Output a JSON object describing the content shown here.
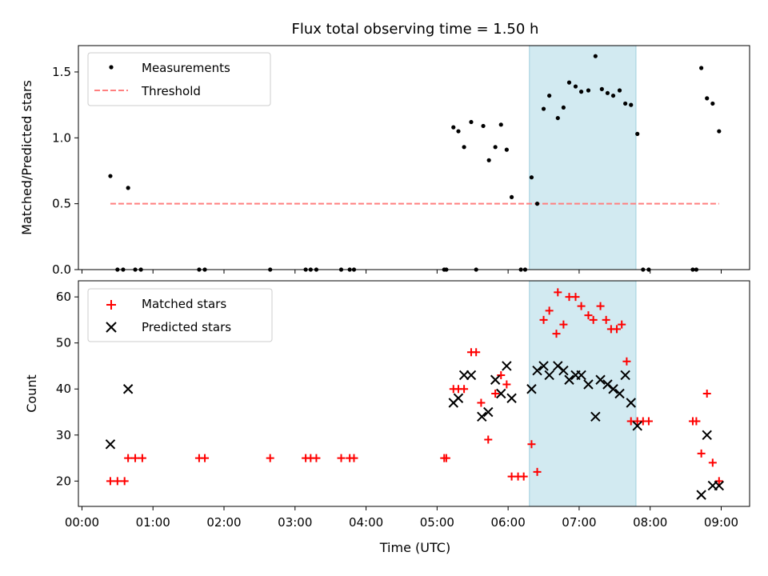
{
  "title": "Flux total observing time = 1.50 h",
  "colors": {
    "measurement": "#000000",
    "threshold": "#ff7f7f",
    "matched": "#ff0000",
    "predicted": "#000000",
    "highlight": "#add8e6"
  },
  "chart_data": [
    {
      "type": "scatter",
      "ylabel": "Matched/Predicted stars",
      "ylim": [
        0,
        1.7
      ],
      "yticks": [
        "0.0",
        "0.5",
        "1.0",
        "1.5"
      ],
      "ytick_values": [
        0,
        0.5,
        1.0,
        1.5
      ],
      "xlim": [
        -0.05,
        9.4
      ],
      "highlight_span": [
        6.3,
        7.8
      ],
      "legend_position": "upper-left",
      "series": [
        {
          "name": "Measurements",
          "marker": "dot",
          "x": [
            0.4,
            0.5,
            0.58,
            0.65,
            0.75,
            0.83,
            1.65,
            1.73,
            2.65,
            3.15,
            3.22,
            3.3,
            3.65,
            3.77,
            3.83,
            5.1,
            5.13,
            5.23,
            5.3,
            5.38,
            5.48,
            5.55,
            5.65,
            5.73,
            5.82,
            5.9,
            5.98,
            6.05,
            6.18,
            6.24,
            6.33,
            6.41,
            6.5,
            6.58,
            6.7,
            6.78,
            6.86,
            6.95,
            7.03,
            7.13,
            7.23,
            7.32,
            7.4,
            7.48,
            7.57,
            7.65,
            7.73,
            7.82,
            7.9,
            7.98,
            8.6,
            8.65,
            8.72,
            8.8,
            8.88,
            8.97
          ],
          "y": [
            0.71,
            0.0,
            0.0,
            0.62,
            0.0,
            0.0,
            0.0,
            0.0,
            0.0,
            0.0,
            0.0,
            0.0,
            0.0,
            0.0,
            0.0,
            0.0,
            0.0,
            1.08,
            1.05,
            0.93,
            1.12,
            0.0,
            1.09,
            0.83,
            0.93,
            1.1,
            0.91,
            0.55,
            0.0,
            0.0,
            0.7,
            0.5,
            1.22,
            1.32,
            1.15,
            1.23,
            1.42,
            1.39,
            1.35,
            1.36,
            1.62,
            1.37,
            1.34,
            1.32,
            1.36,
            1.26,
            1.25,
            1.03,
            0.0,
            0.0,
            0.0,
            0.0,
            1.53,
            1.3,
            1.26,
            1.05
          ]
        },
        {
          "name": "Threshold",
          "marker": "dashed-line",
          "x": [
            0.4,
            8.97
          ],
          "y": [
            0.5,
            0.5
          ]
        }
      ]
    },
    {
      "type": "scatter",
      "ylabel": "Count",
      "xlabel": "Time (UTC)",
      "ylim": [
        14.5,
        63.5
      ],
      "yticks": [
        "20",
        "30",
        "40",
        "50",
        "60"
      ],
      "ytick_values": [
        20,
        30,
        40,
        50,
        60
      ],
      "xlim": [
        -0.05,
        9.4
      ],
      "xticks": [
        "00:00",
        "01:00",
        "02:00",
        "03:00",
        "04:00",
        "05:00",
        "06:00",
        "07:00",
        "08:00",
        "09:00"
      ],
      "xtick_values": [
        0,
        1,
        2,
        3,
        4,
        5,
        6,
        7,
        8,
        9
      ],
      "highlight_span": [
        6.3,
        7.8
      ],
      "legend_position": "upper-left",
      "series": [
        {
          "name": "Matched stars",
          "marker": "plus",
          "x": [
            0.4,
            0.5,
            0.6,
            0.65,
            0.75,
            0.85,
            1.65,
            1.73,
            2.65,
            3.15,
            3.22,
            3.3,
            3.65,
            3.77,
            3.83,
            5.1,
            5.13,
            5.23,
            5.3,
            5.38,
            5.48,
            5.55,
            5.62,
            5.72,
            5.82,
            5.9,
            5.98,
            6.05,
            6.14,
            6.22,
            6.33,
            6.41,
            6.5,
            6.58,
            6.68,
            6.7,
            6.78,
            6.86,
            6.95,
            7.03,
            7.13,
            7.2,
            7.3,
            7.38,
            7.45,
            7.53,
            7.6,
            7.67,
            7.73,
            7.82,
            7.9,
            7.98,
            8.6,
            8.65,
            8.72,
            8.8,
            8.88,
            8.97
          ],
          "y": [
            20,
            20,
            20,
            25,
            25,
            25,
            25,
            25,
            25,
            25,
            25,
            25,
            25,
            25,
            25,
            25,
            25,
            40,
            40,
            40,
            48,
            48,
            37,
            29,
            39,
            43,
            41,
            21,
            21,
            21,
            28,
            22,
            55,
            57,
            52,
            61,
            54,
            60,
            60,
            58,
            56,
            55,
            58,
            55,
            53,
            53,
            54,
            46,
            33,
            33,
            33,
            33,
            33,
            33,
            26,
            39,
            24,
            20
          ]
        },
        {
          "name": "Predicted stars",
          "marker": "x",
          "x": [
            0.4,
            0.65,
            5.23,
            5.3,
            5.38,
            5.48,
            5.63,
            5.72,
            5.82,
            5.9,
            5.98,
            6.05,
            6.33,
            6.41,
            6.5,
            6.58,
            6.7,
            6.78,
            6.86,
            6.95,
            7.03,
            7.13,
            7.23,
            7.3,
            7.4,
            7.48,
            7.57,
            7.65,
            7.73,
            7.82,
            8.72,
            8.8,
            8.88,
            8.97
          ],
          "y": [
            28,
            40,
            37,
            38,
            43,
            43,
            34,
            35,
            42,
            39,
            45,
            38,
            40,
            44,
            45,
            43,
            45,
            44,
            42,
            43,
            43,
            41,
            34,
            42,
            41,
            40,
            39,
            43,
            37,
            32,
            17,
            30,
            19,
            19
          ]
        }
      ]
    }
  ]
}
